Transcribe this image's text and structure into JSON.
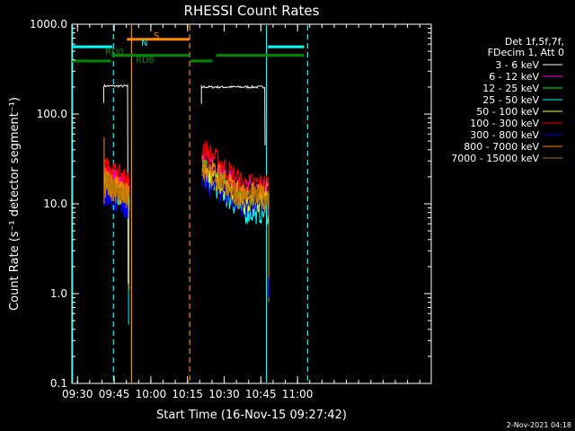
{
  "chart_data": {
    "type": "line",
    "title": "RHESSI Count Rates",
    "xlabel": "Start Time (16-Nov-15 09:27:42)",
    "ylabel": "Count Rate (s⁻¹ detector segment⁻¹)",
    "yscale": "log",
    "ylim": [
      0.1,
      1000
    ],
    "xlim_minutes": [
      0,
      147
    ],
    "x_ticks": [
      {
        "label": "09:30",
        "min": 2.3
      },
      {
        "label": "09:45",
        "min": 17.3
      },
      {
        "label": "10:00",
        "min": 32.3
      },
      {
        "label": "10:15",
        "min": 47.3
      },
      {
        "label": "10:30",
        "min": 62.3
      },
      {
        "label": "10:45",
        "min": 77.3
      },
      {
        "label": "11:00",
        "min": 92.3
      }
    ],
    "y_ticks": [
      {
        "label": "1000.0",
        "value": 1000
      },
      {
        "label": "100.0",
        "value": 100
      },
      {
        "label": "10.0",
        "value": 10
      },
      {
        "label": "1.0",
        "value": 1
      },
      {
        "label": "0.1",
        "value": 0.1
      }
    ],
    "legend": {
      "header": [
        "Det 1f,5f,7f,",
        "FDecim 1, Att 0"
      ],
      "placement": "right"
    },
    "series": [
      {
        "name": "3 - 6 keV",
        "color": "#ffffff",
        "level": 200,
        "segments": [
          {
            "start": 13,
            "end": 23,
            "level": 205
          },
          {
            "start": 53,
            "end": 79,
            "level": 200
          }
        ]
      },
      {
        "name": "6 - 12 keV",
        "color": "#ff00ff",
        "level_start": 23,
        "level_end": 15,
        "peak_seg2": 34
      },
      {
        "name": "12 - 25 keV",
        "color": "#00ff00",
        "level_start": 18,
        "level_end": 11,
        "peak_seg2": 26
      },
      {
        "name": "25 - 50 keV",
        "color": "#00ffff",
        "level_start": 16,
        "level_end": 8,
        "peak_seg2": 22
      },
      {
        "name": "50 - 100 keV",
        "color": "#ffff00",
        "level_start": 17,
        "level_end": 11,
        "peak_seg2": 24
      },
      {
        "name": "100 - 300 keV",
        "color": "#ff0000",
        "level_start": 27,
        "level_end": 17,
        "peak_seg2": 44
      },
      {
        "name": "300 - 800 keV",
        "color": "#0000ff",
        "level_start": 14,
        "level_end": 10,
        "peak_seg2": 19
      },
      {
        "name": "800 - 7000 keV",
        "color": "#ff8800",
        "level_start": 19,
        "level_end": 13,
        "peak_seg2": 28
      },
      {
        "name": "7000 - 15000 keV",
        "color": "#b87800",
        "level_start": 18,
        "level_end": 12,
        "peak_seg2": 25
      }
    ],
    "flag_bars": [
      {
        "label": "N",
        "color": "#00ffff",
        "level": 560,
        "ranges": [
          [
            0,
            16.5
          ],
          [
            80.2,
            95
          ]
        ]
      },
      {
        "label": "S",
        "color": "#ff8800",
        "level": 680,
        "ranges": [
          [
            22.5,
            48.2
          ]
        ]
      },
      {
        "label": "RD0",
        "color": "#008800",
        "level": 390,
        "ranges": [
          [
            0,
            16
          ],
          [
            48.5,
            57.5
          ]
        ]
      },
      {
        "label": "RD6",
        "color": "#008800",
        "level": 450,
        "ranges": [
          [
            16.3,
            48.2
          ],
          [
            59,
            95
          ]
        ]
      }
    ],
    "vertical_markers": [
      {
        "min": 0.3,
        "color": "#00ffff",
        "style": "solid"
      },
      {
        "min": 17,
        "color": "#00ffff",
        "style": "dashed"
      },
      {
        "min": 24.4,
        "color": "#ff8800",
        "style": "solid"
      },
      {
        "min": 48.2,
        "color": "#ff8800",
        "style": "dashed"
      },
      {
        "min": 79.6,
        "color": "#00ffff",
        "style": "solid"
      },
      {
        "min": 96.4,
        "color": "#00ffff",
        "style": "dashed"
      }
    ],
    "data_segments": [
      [
        13.2,
        23.5
      ],
      [
        53.3,
        80.5
      ]
    ]
  },
  "timestamp": "2-Nov-2021 04:18"
}
